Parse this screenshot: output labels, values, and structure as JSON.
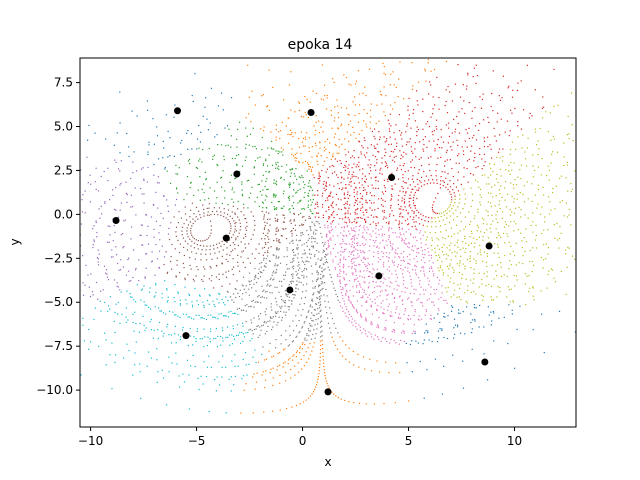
{
  "chart_data": {
    "type": "scatter",
    "title": "epoka 14",
    "xlabel": "x",
    "ylabel": "y",
    "xlim": [
      -10.5,
      12.9
    ],
    "ylim": [
      -12.1,
      8.9
    ],
    "xticks": [
      -10,
      -5,
      0,
      5,
      10
    ],
    "yticks": [
      -10.0,
      -7.5,
      -5.0,
      -2.5,
      0.0,
      2.5,
      5.0,
      7.5
    ],
    "xtick_labels": [
      "−10",
      "−5",
      "0",
      "5",
      "10"
    ],
    "ytick_labels": [
      "−10.0",
      "−7.5",
      "−5.0",
      "−2.5",
      "0.0",
      "2.5",
      "5.0",
      "7.5"
    ],
    "grid": false,
    "colors": [
      "#1f77b4",
      "#ff7f0e",
      "#2ca02c",
      "#d62728",
      "#9467bd",
      "#8c564b",
      "#e377c2",
      "#7f7f7f",
      "#bcbd22",
      "#17becf"
    ],
    "centroid_color": "#000000",
    "centroids": [
      {
        "x": -5.9,
        "y": 5.9
      },
      {
        "x": 0.4,
        "y": 5.8
      },
      {
        "x": -3.1,
        "y": 2.3
      },
      {
        "x": 4.2,
        "y": 2.1
      },
      {
        "x": -8.8,
        "y": -0.35
      },
      {
        "x": -3.6,
        "y": -1.35
      },
      {
        "x": 3.6,
        "y": -3.5
      },
      {
        "x": -0.6,
        "y": -4.3
      },
      {
        "x": 8.8,
        "y": -1.8
      },
      {
        "x": -5.5,
        "y": -6.9
      },
      {
        "x": 8.6,
        "y": -8.4
      },
      {
        "x": 1.2,
        "y": -10.1
      }
    ]
  }
}
